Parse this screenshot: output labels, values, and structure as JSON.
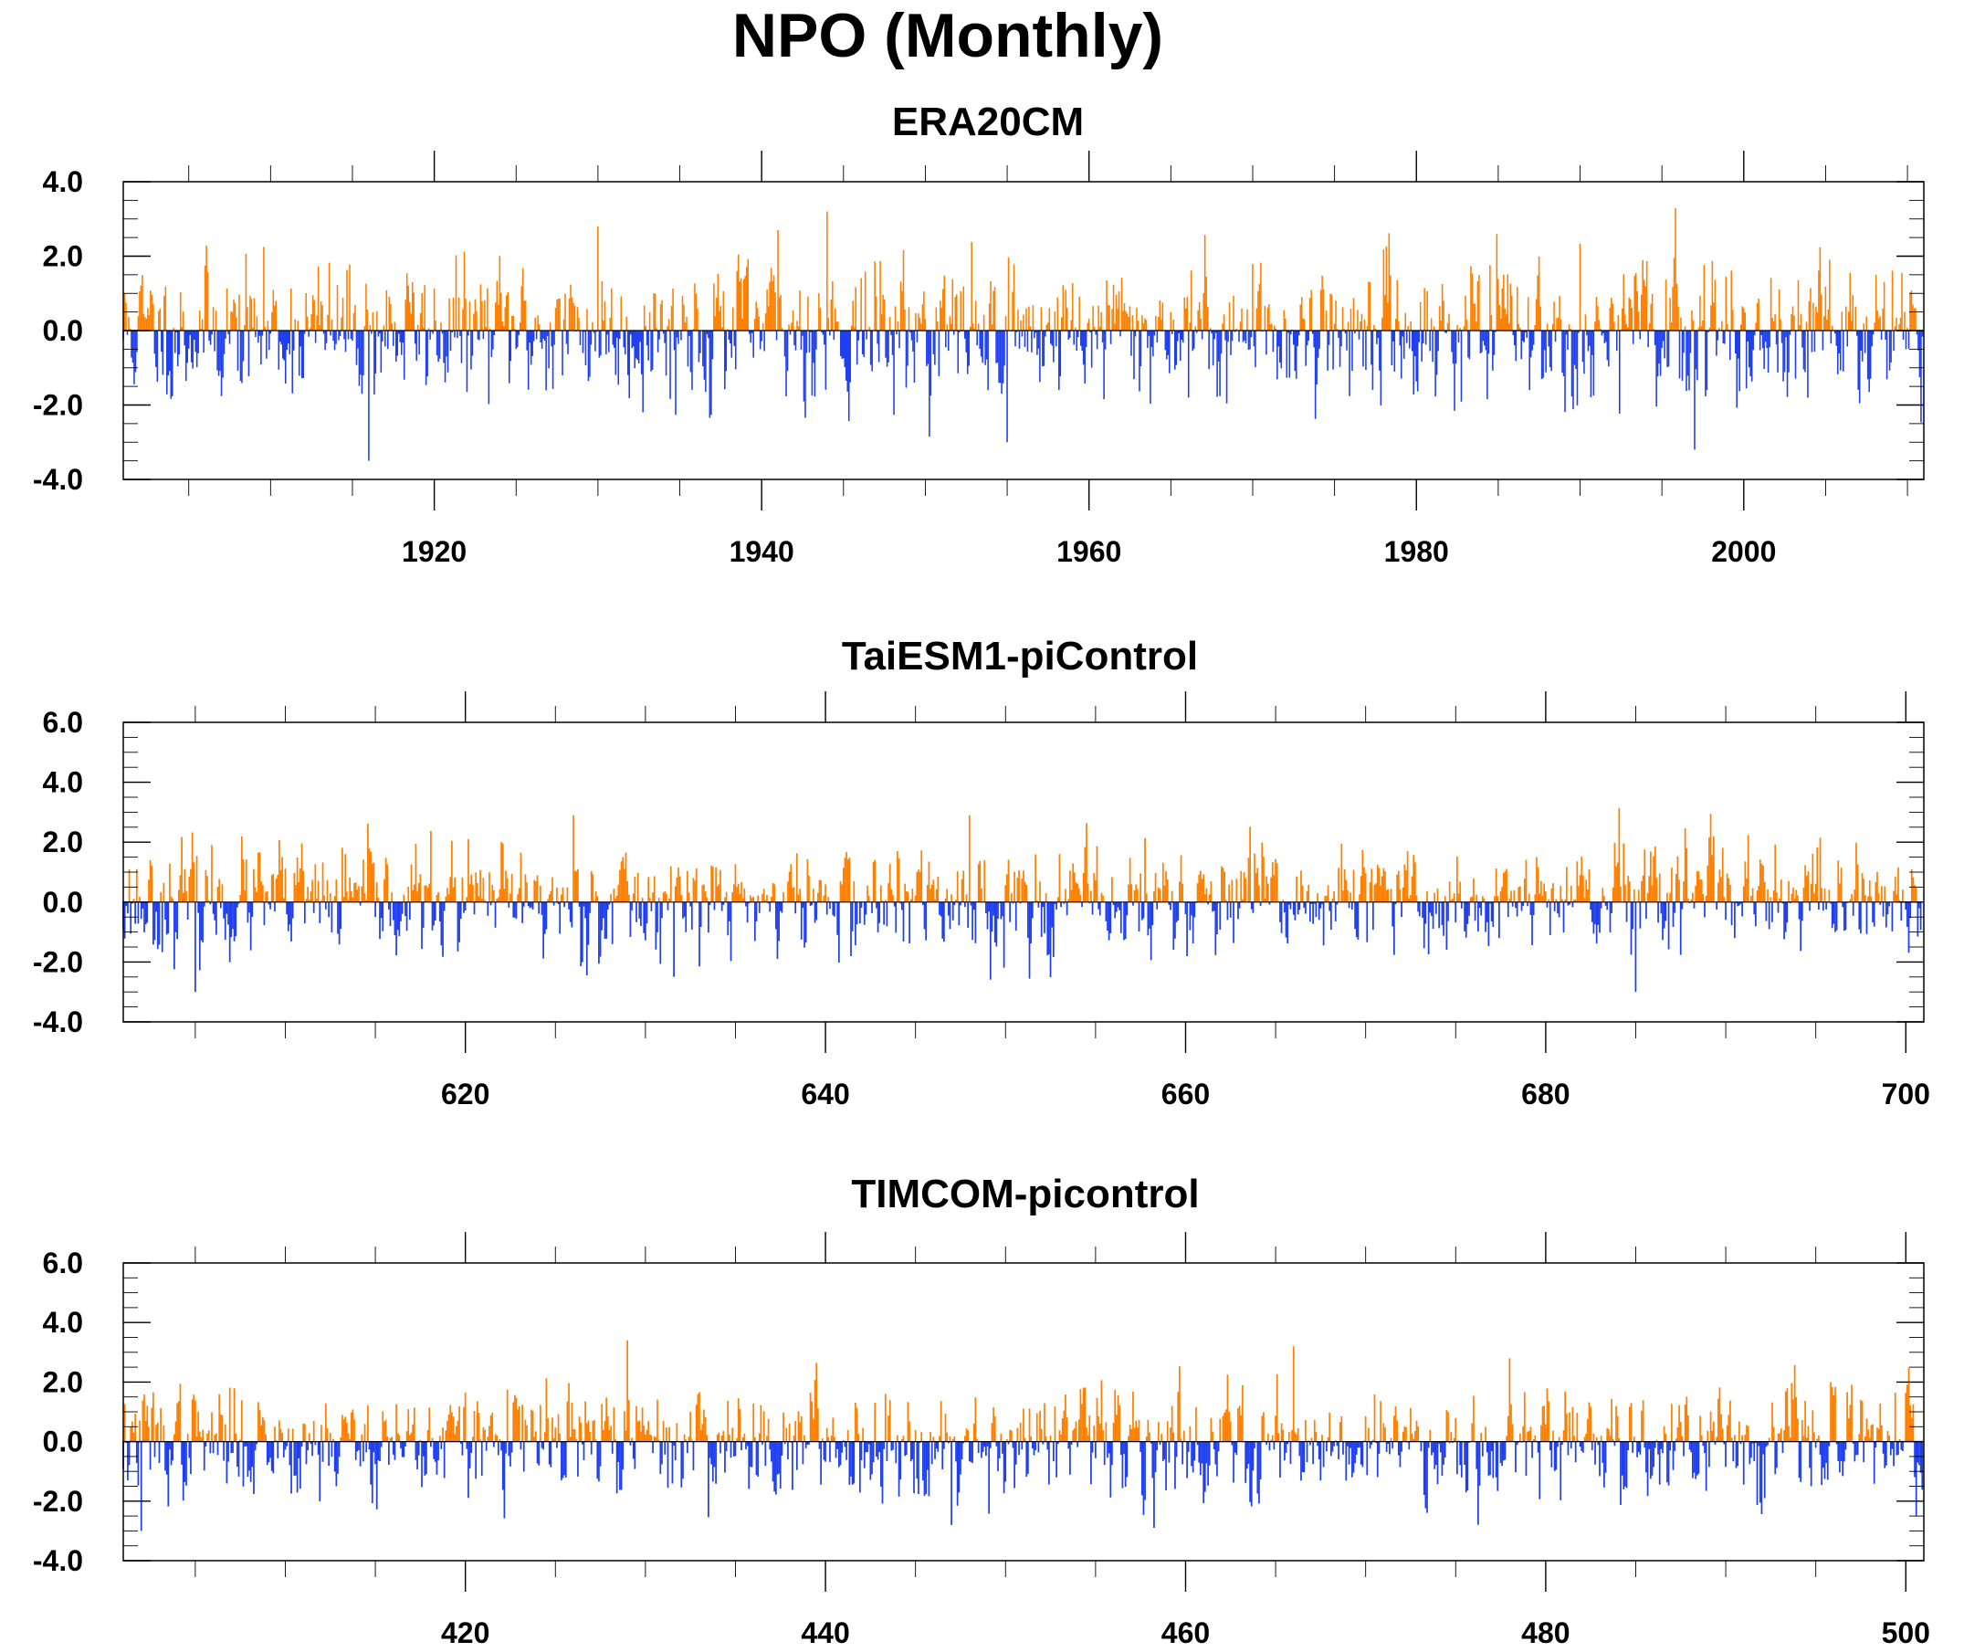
{
  "figure": {
    "title": "NPO (Monthly)",
    "colors": {
      "positive": "#ff8000",
      "negative": "#1f3ff0",
      "axis": "#000000"
    }
  },
  "chart_data": [
    {
      "type": "bar",
      "title": "ERA20CM",
      "xlabel": "",
      "ylabel": "",
      "x_start": 1901.0,
      "x_step": 0.08333,
      "xlim": [
        1901,
        2011
      ],
      "ylim": [
        -4.0,
        4.0
      ],
      "xticks": [
        1920,
        1940,
        1960,
        1980,
        2000
      ],
      "xtick_labels": [
        "1920",
        "1940",
        "1960",
        "1980",
        "2000"
      ],
      "yticks": [
        -4.0,
        -2.0,
        0.0,
        2.0,
        4.0
      ],
      "ytick_labels": [
        "-4.0",
        "-2.0",
        "0.0",
        "2.0",
        "4.0"
      ],
      "n_points": 1320,
      "seed": 11,
      "sigma": 0.9,
      "grid": false,
      "legend": "none",
      "values_reference": [
        {
          "x": 1930,
          "y": 2.8
        },
        {
          "x": 1941,
          "y": 2.7
        },
        {
          "x": 1944,
          "y": 3.2
        },
        {
          "x": 1916,
          "y": -3.5
        },
        {
          "x": 1955,
          "y": -3.0
        },
        {
          "x": 1997,
          "y": -3.2
        }
      ]
    },
    {
      "type": "bar",
      "title": "TaiESM1-piControl",
      "xlabel": "",
      "ylabel": "",
      "x_start": 601.0,
      "x_step": 0.08333,
      "xlim": [
        601,
        701
      ],
      "ylim": [
        -4.0,
        6.0
      ],
      "xticks": [
        620,
        640,
        660,
        680,
        700
      ],
      "xtick_labels": [
        "620",
        "640",
        "660",
        "680",
        "700"
      ],
      "yticks": [
        -4.0,
        -2.0,
        0.0,
        2.0,
        4.0,
        6.0
      ],
      "ytick_labels": [
        "-4.0",
        "-2.0",
        "0.0",
        "2.0",
        "4.0",
        "6.0"
      ],
      "n_points": 1200,
      "seed": 23,
      "sigma": 0.9,
      "grid": false,
      "legend": "none",
      "values_reference": [
        {
          "x": 626,
          "y": 2.9
        },
        {
          "x": 648,
          "y": 2.9
        },
        {
          "x": 685,
          "y": 3.6
        },
        {
          "x": 605,
          "y": -3.0
        },
        {
          "x": 685,
          "y": -3.0
        }
      ]
    },
    {
      "type": "bar",
      "title": "TIMCOM-picontrol",
      "xlabel": "",
      "ylabel": "",
      "x_start": 401.0,
      "x_step": 0.08333,
      "xlim": [
        401,
        501
      ],
      "ylim": [
        -4.0,
        6.0
      ],
      "xticks": [
        420,
        440,
        460,
        480,
        500
      ],
      "xtick_labels": [
        "420",
        "440",
        "460",
        "480",
        "500"
      ],
      "yticks": [
        -4.0,
        -2.0,
        0.0,
        2.0,
        4.0,
        6.0
      ],
      "ytick_labels": [
        "-4.0",
        "-2.0",
        "0.0",
        "2.0",
        "4.0",
        "6.0"
      ],
      "n_points": 1200,
      "seed": 37,
      "sigma": 0.9,
      "grid": false,
      "legend": "none",
      "values_reference": [
        {
          "x": 429,
          "y": 3.4
        },
        {
          "x": 466,
          "y": 3.2
        },
        {
          "x": 478,
          "y": 2.8
        },
        {
          "x": 447,
          "y": -2.8
        },
        {
          "x": 402,
          "y": -3.0
        }
      ]
    }
  ]
}
